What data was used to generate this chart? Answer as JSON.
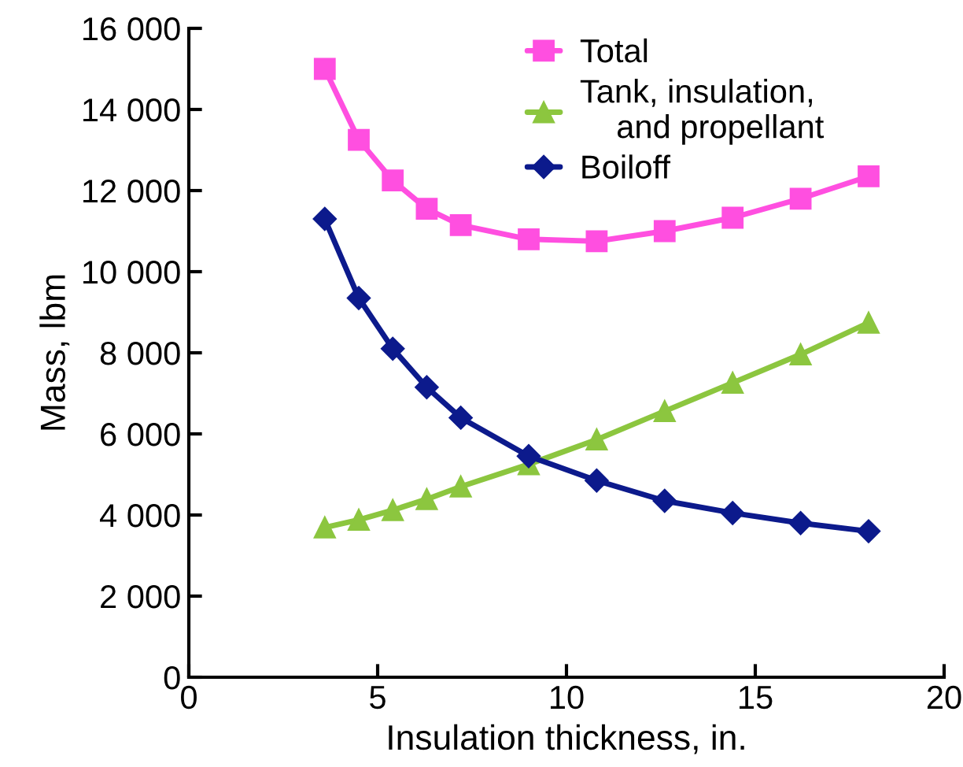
{
  "chart_data": {
    "type": "line",
    "xlabel": "Insulation thickness, in.",
    "ylabel": "Mass, lbm",
    "x": [
      3.6,
      4.5,
      5.4,
      6.3,
      7.2,
      9,
      10.8,
      12.6,
      14.4,
      16.2,
      18
    ],
    "series": [
      {
        "name": "Total",
        "color": "#ff4fe0",
        "marker": "square",
        "values": [
          15000,
          13250,
          12250,
          11550,
          11150,
          10800,
          10750,
          11000,
          11330,
          11800,
          12350
        ]
      },
      {
        "name": "Tank, insulation,\n    and propellant",
        "color": "#8cc63f",
        "marker": "triangle",
        "values": [
          3690,
          3880,
          4120,
          4390,
          4700,
          5250,
          5860,
          6560,
          7260,
          7960,
          8740
        ]
      },
      {
        "name": "Boiloff",
        "color": "#0c1a8c",
        "marker": "diamond",
        "values": [
          11300,
          9350,
          8100,
          7150,
          6400,
          5450,
          4850,
          4350,
          4050,
          3800,
          3600
        ]
      }
    ],
    "xlim": [
      0,
      20
    ],
    "xticks": [
      0,
      5,
      10,
      15,
      20
    ],
    "ylim": [
      0,
      16000
    ],
    "yticks": [
      0,
      {
        "value": 2000,
        "label": "2 000"
      },
      {
        "value": 4000,
        "label": "4 000"
      },
      {
        "value": 6000,
        "label": "6 000"
      },
      {
        "value": 8000,
        "label": "8 000"
      },
      {
        "value": 10000,
        "label": "10 000"
      },
      {
        "value": 12000,
        "label": "12 000"
      },
      {
        "value": 14000,
        "label": "14 000"
      },
      {
        "value": 16000,
        "label": "16 000"
      }
    ],
    "grid": false,
    "legend": "top right",
    "line_style": "solid"
  }
}
